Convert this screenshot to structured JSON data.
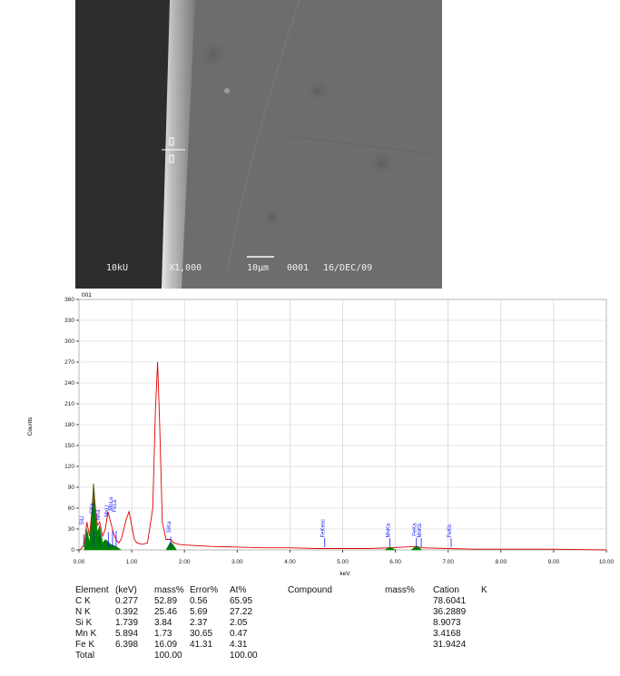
{
  "image": {
    "captions": [
      "10kU",
      "X1,000",
      "10μm",
      "0001",
      "16/DEC/09"
    ]
  },
  "chart_data": {
    "type": "line",
    "title": "001",
    "x_label": "keV",
    "y_label": "Counts",
    "xlim": [
      0,
      10
    ],
    "ylim": [
      0,
      360
    ],
    "xticks": [
      {
        "value": 0,
        "label": "0.00"
      },
      {
        "value": 1,
        "label": "1.00"
      },
      {
        "value": 2,
        "label": "2.00"
      },
      {
        "value": 3,
        "label": "3.00"
      },
      {
        "value": 4,
        "label": "4.00"
      },
      {
        "value": 5,
        "label": "5.00"
      },
      {
        "value": 6,
        "label": "6.00"
      },
      {
        "value": 7,
        "label": "7.00"
      },
      {
        "value": 8,
        "label": "8.00"
      },
      {
        "value": 9,
        "label": "9.00"
      },
      {
        "value": 10,
        "label": "10.00"
      }
    ],
    "yticks": [
      0,
      30,
      60,
      90,
      120,
      150,
      180,
      210,
      240,
      270,
      300,
      330,
      360
    ],
    "grid": true,
    "series": [
      {
        "color": "#e00000",
        "fill": false,
        "x": [
          0,
          0.05,
          0.1,
          0.15,
          0.2,
          0.25,
          0.277,
          0.3,
          0.35,
          0.39,
          0.45,
          0.5,
          0.55,
          0.6,
          0.65,
          0.7,
          0.75,
          0.8,
          0.85,
          0.9,
          0.95,
          1.0,
          1.05,
          1.1,
          1.2,
          1.3,
          1.4,
          1.45,
          1.49,
          1.53,
          1.58,
          1.65,
          1.74,
          1.8,
          1.9,
          2.0,
          2.5,
          3.0,
          3.5,
          4.0,
          4.5,
          5.0,
          5.5,
          5.9,
          6.4,
          6.5,
          7.0,
          7.5,
          8.0,
          9.0,
          10.0
        ],
        "values": [
          0,
          2,
          8,
          40,
          20,
          60,
          95,
          70,
          35,
          40,
          20,
          30,
          55,
          40,
          25,
          15,
          10,
          15,
          30,
          45,
          55,
          35,
          15,
          10,
          8,
          10,
          60,
          200,
          270,
          180,
          40,
          15,
          15,
          10,
          8,
          7,
          5,
          4,
          3,
          3,
          2,
          2,
          2,
          3,
          5,
          3,
          2,
          1,
          1,
          1,
          0
        ]
      },
      {
        "color": "#008000",
        "fill": true,
        "x": [
          0.1,
          0.15,
          0.2,
          0.25,
          0.277,
          0.3,
          0.35,
          0.39,
          0.45,
          0.5,
          0.55,
          0.6,
          0.7,
          0.8,
          1.2,
          1.65,
          1.74,
          1.85,
          3.0,
          5.8,
          5.9,
          6.0,
          6.2,
          6.3,
          6.4,
          6.5
        ],
        "values": [
          0,
          30,
          10,
          55,
          95,
          60,
          25,
          35,
          10,
          15,
          12,
          8,
          5,
          0,
          null,
          0,
          12,
          0,
          null,
          0,
          4,
          0,
          null,
          0,
          6,
          0
        ]
      }
    ],
    "peak_labels": [
      {
        "label": "SiLl",
        "x": 0.09
      },
      {
        "label": "CKa",
        "x": 0.277
      },
      {
        "label": "NKa",
        "x": 0.392
      },
      {
        "label": "MnLl",
        "x": 0.556
      },
      {
        "label": "MnLa",
        "x": 0.637
      },
      {
        "label": "FeLa",
        "x": 0.705
      },
      {
        "label": "SiKa",
        "x": 1.739
      },
      {
        "label": "FeKesc",
        "x": 4.66
      },
      {
        "label": "MnKa",
        "x": 5.894
      },
      {
        "label": "FeKa",
        "x": 6.398
      },
      {
        "label": "MnKb",
        "x": 6.49
      },
      {
        "label": "FeKb",
        "x": 7.057
      }
    ]
  },
  "table": {
    "header": [
      "Element",
      "(keV)",
      "mass%",
      "Error%",
      "At%",
      "Compound",
      "mass%",
      "Cation",
      "K"
    ],
    "rows": [
      [
        "C K",
        "0.277",
        "52.89",
        "0.56",
        "65.95",
        "78.6041"
      ],
      [
        "N K",
        "0.392",
        "25.46",
        "5.69",
        "27.22",
        "36.2889"
      ],
      [
        "Si K",
        "1.739",
        "3.84",
        "2.37",
        "2.05",
        "8.9073"
      ],
      [
        "Mn K",
        "5.894",
        "1.73",
        "30.65",
        "0.47",
        "3.4168"
      ],
      [
        "Fe K",
        "6.398",
        "16.09",
        "41.31",
        "4.31",
        "31.9424"
      ],
      [
        "Total",
        "",
        "100.00",
        "",
        "100.00"
      ]
    ]
  }
}
